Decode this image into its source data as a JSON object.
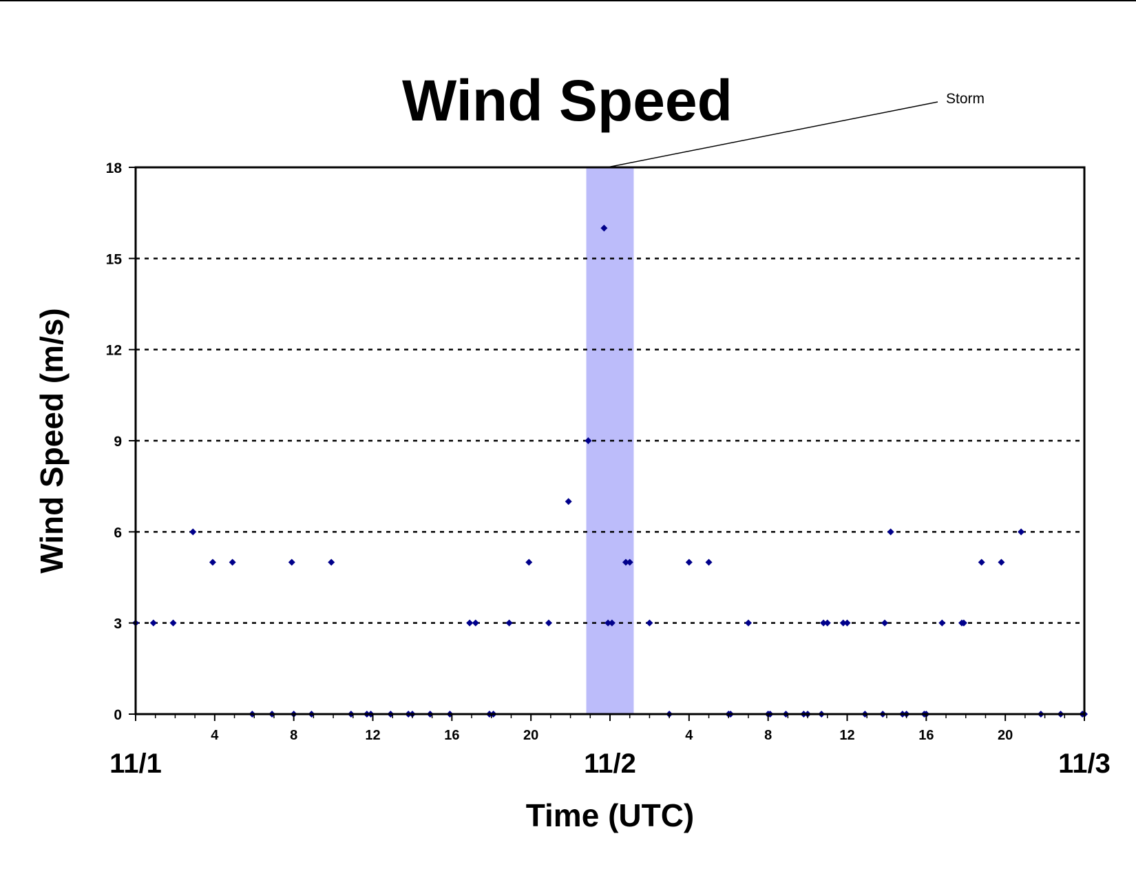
{
  "chart_data": {
    "type": "scatter",
    "title": "Wind Speed",
    "xlabel": "Time (UTC)",
    "ylabel": "Wind Speed (m/s)",
    "ylim": [
      0,
      18
    ],
    "yticks": [
      "0",
      "3",
      "6",
      "9",
      "12",
      "15",
      "18"
    ],
    "xlim_hours": [
      0,
      48
    ],
    "x_hour_tick_labels": [
      {
        "hour": 4,
        "label": "4"
      },
      {
        "hour": 8,
        "label": "8"
      },
      {
        "hour": 12,
        "label": "12"
      },
      {
        "hour": 16,
        "label": "16"
      },
      {
        "hour": 20,
        "label": "20"
      },
      {
        "hour": 28,
        "label": "4"
      },
      {
        "hour": 32,
        "label": "8"
      },
      {
        "hour": 36,
        "label": "12"
      },
      {
        "hour": 40,
        "label": "16"
      },
      {
        "hour": 44,
        "label": "20"
      }
    ],
    "date_labels": [
      {
        "hour": 0,
        "label": "11/1"
      },
      {
        "hour": 24,
        "label": "11/2"
      },
      {
        "hour": 48,
        "label": "11/3"
      }
    ],
    "grid": "horizontal dashed",
    "marker_color": "#00008b",
    "highlight": {
      "label": "Storm",
      "start_hour": 22.8,
      "end_hour": 25.2,
      "color": "#bcbcfa"
    },
    "points": [
      [
        0,
        3
      ],
      [
        0.9,
        3
      ],
      [
        1.9,
        3
      ],
      [
        2.9,
        6
      ],
      [
        3.9,
        5
      ],
      [
        4.9,
        5
      ],
      [
        5.9,
        0
      ],
      [
        6.9,
        0
      ],
      [
        7.9,
        5
      ],
      [
        8.0,
        0
      ],
      [
        8.9,
        0
      ],
      [
        9.9,
        5
      ],
      [
        10.9,
        0
      ],
      [
        11.7,
        0
      ],
      [
        11.9,
        0
      ],
      [
        12.9,
        0
      ],
      [
        13.8,
        0
      ],
      [
        14.0,
        0
      ],
      [
        14.9,
        0
      ],
      [
        15.9,
        0
      ],
      [
        16.9,
        3
      ],
      [
        17.2,
        3
      ],
      [
        17.9,
        0
      ],
      [
        18.1,
        0
      ],
      [
        18.9,
        3
      ],
      [
        19.9,
        5
      ],
      [
        20.9,
        3
      ],
      [
        21.9,
        7
      ],
      [
        22.9,
        9
      ],
      [
        23.7,
        16
      ],
      [
        23.9,
        3
      ],
      [
        24.1,
        3
      ],
      [
        24.8,
        5
      ],
      [
        25.0,
        5
      ],
      [
        26.0,
        3
      ],
      [
        27.0,
        0
      ],
      [
        28.0,
        5
      ],
      [
        29.0,
        5
      ],
      [
        30.0,
        0
      ],
      [
        30.1,
        0
      ],
      [
        31.0,
        3
      ],
      [
        32.0,
        0
      ],
      [
        32.1,
        0
      ],
      [
        32.9,
        0
      ],
      [
        33.8,
        0
      ],
      [
        34.0,
        0
      ],
      [
        34.7,
        0
      ],
      [
        34.8,
        3
      ],
      [
        35.0,
        3
      ],
      [
        35.8,
        3
      ],
      [
        36.0,
        3
      ],
      [
        36.9,
        0
      ],
      [
        37.8,
        0
      ],
      [
        37.9,
        3
      ],
      [
        38.2,
        6
      ],
      [
        38.8,
        0
      ],
      [
        39.0,
        0
      ],
      [
        39.9,
        0
      ],
      [
        40.0,
        0
      ],
      [
        40.8,
        3
      ],
      [
        41.8,
        3
      ],
      [
        41.9,
        3
      ],
      [
        42.8,
        5
      ],
      [
        43.8,
        5
      ],
      [
        44.8,
        6
      ],
      [
        45.8,
        0
      ],
      [
        46.8,
        0
      ],
      [
        47.9,
        0
      ],
      [
        48.0,
        0
      ]
    ]
  }
}
